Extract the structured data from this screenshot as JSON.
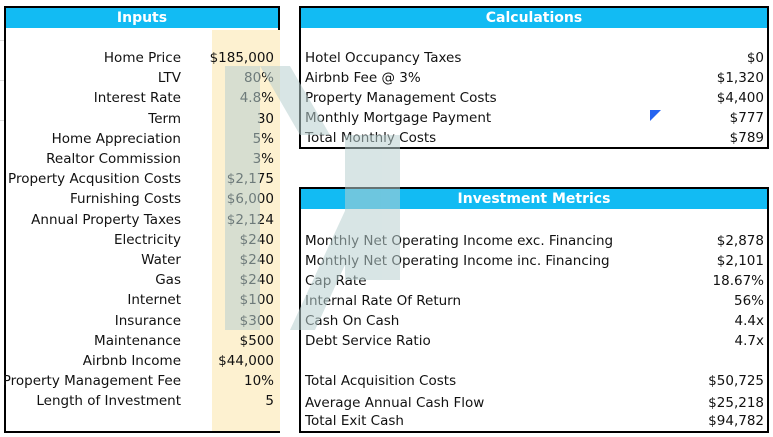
{
  "inputs": {
    "title": "Inputs",
    "rows": [
      {
        "label": "Home Price",
        "value": "$185,000"
      },
      {
        "label": "LTV",
        "value": "80%"
      },
      {
        "label": "Interest Rate",
        "value": "4.8%"
      },
      {
        "label": "Term",
        "value": "30"
      },
      {
        "label": "Home Appreciation",
        "value": "5%"
      },
      {
        "label": "Realtor Commission",
        "value": "3%"
      },
      {
        "label": "Property Acqusition Costs",
        "value": "$2,175"
      },
      {
        "label": "Furnishing Costs",
        "value": "$6,000"
      },
      {
        "label": "Annual Property Taxes",
        "value": "$2,124"
      },
      {
        "label": "Electricity",
        "value": "$240"
      },
      {
        "label": "Water",
        "value": "$240"
      },
      {
        "label": "Gas",
        "value": "$240"
      },
      {
        "label": "Internet",
        "value": "$100"
      },
      {
        "label": "Insurance",
        "value": "$300"
      },
      {
        "label": "Maintenance",
        "value": "$500"
      },
      {
        "label": "Airbnb Income",
        "value": "$44,000"
      },
      {
        "label": "Property Management Fee",
        "value": "10%"
      },
      {
        "label": "Length of Investment",
        "value": "5"
      }
    ]
  },
  "calculations": {
    "title": "Calculations",
    "rows": [
      {
        "label": "Hotel Occupancy Taxes",
        "value": "$0"
      },
      {
        "label": "Airbnb Fee @ 3%",
        "value": "$1,320"
      },
      {
        "label": "Property Management Costs",
        "value": "$4,400"
      },
      {
        "label": "Monthly Mortgage Payment",
        "value": "$777"
      },
      {
        "label": "Total Monthly Costs",
        "value": "$789"
      }
    ]
  },
  "metrics": {
    "title": "Investment Metrics",
    "rows": [
      {
        "label": "Monthly Net Operating Income exc. Financing",
        "value": "$2,878"
      },
      {
        "label": "Monthly Net Operating Income inc. Financing",
        "value": "$2,101"
      },
      {
        "label": "Cap Rate",
        "value": "18.67%"
      },
      {
        "label": "Internal Rate Of Return",
        "value": "56%"
      },
      {
        "label": "Cash On Cash",
        "value": "4.4x"
      },
      {
        "label": "Debt Service Ratio",
        "value": "4.7x"
      },
      {
        "label": "Total Acquisition Costs",
        "value": "$50,725"
      },
      {
        "label": "Average Annual Cash Flow",
        "value": "$25,218"
      },
      {
        "label": "Total Exit Cash",
        "value": "$94,782"
      }
    ]
  },
  "colors": {
    "header": "#12bbf3",
    "input_fill": "#fdf1d0",
    "watermark": "#c9dcdc",
    "comment_marker": "#2463f0"
  }
}
